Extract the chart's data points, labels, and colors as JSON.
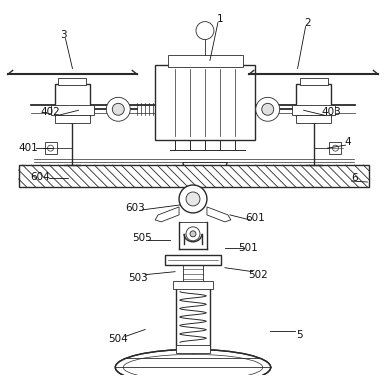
{
  "bg_color": "#ffffff",
  "line_color": "#2a2a2a",
  "fig_width": 3.86,
  "fig_height": 3.76,
  "dpi": 100
}
